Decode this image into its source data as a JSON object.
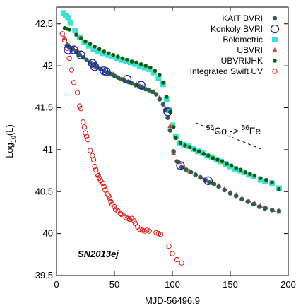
{
  "chart_data": {
    "type": "scatter",
    "xlabel": "MJD-56496.9",
    "ylabel_main": "Log",
    "ylabel_sub": "10",
    "ylabel_tail": "(L)",
    "xlim": [
      0,
      200
    ],
    "ylim": [
      39.5,
      42.7
    ],
    "x_ticks": [
      0,
      50,
      100,
      150,
      200
    ],
    "y_ticks": [
      39.5,
      40,
      40.5,
      41,
      41.5,
      42,
      42.5
    ],
    "y_tick_labels": [
      "39.5",
      "40",
      "40.5",
      "41",
      "41.5",
      "42",
      "42.5"
    ],
    "grid": false,
    "legend_position": "top-right",
    "object_label": "SN2013ej",
    "annotation": {
      "sup1": "56",
      "text1": "Co -> ",
      "sup2": "56",
      "text2": "Fe",
      "line_x": [
        120,
        178
      ],
      "line_y": [
        41.32,
        41.0
      ]
    },
    "series": [
      {
        "name": "KAIT BVRI",
        "marker": "filled-circle",
        "color": "#2f5f4a",
        "points": [
          [
            9,
            42.24
          ],
          [
            11,
            42.22
          ],
          [
            14,
            42.2
          ],
          [
            17,
            42.17
          ],
          [
            20,
            42.13
          ],
          [
            23,
            42.1
          ],
          [
            26,
            42.07
          ],
          [
            29,
            42.04
          ],
          [
            32,
            42.01
          ],
          [
            35,
            41.98
          ],
          [
            38,
            41.96
          ],
          [
            41,
            41.94
          ],
          [
            44,
            41.92
          ],
          [
            47,
            41.9
          ],
          [
            50,
            41.88
          ],
          [
            53,
            41.86
          ],
          [
            56,
            41.84
          ],
          [
            59,
            41.82
          ],
          [
            62,
            41.81
          ],
          [
            65,
            41.79
          ],
          [
            68,
            41.77
          ],
          [
            71,
            41.76
          ],
          [
            74,
            41.74
          ],
          [
            77,
            41.72
          ],
          [
            80,
            41.71
          ],
          [
            83,
            41.69
          ],
          [
            86,
            41.66
          ],
          [
            89,
            41.6
          ],
          [
            92,
            41.54
          ],
          [
            94,
            41.47
          ],
          [
            96,
            41.38
          ],
          [
            98,
            41.23
          ],
          [
            101,
            40.98
          ],
          [
            104,
            40.86
          ],
          [
            108,
            40.79
          ],
          [
            112,
            40.76
          ],
          [
            116,
            40.73
          ],
          [
            120,
            40.7
          ],
          [
            124,
            40.67
          ],
          [
            128,
            40.64
          ],
          [
            132,
            40.61
          ],
          [
            136,
            40.59
          ],
          [
            140,
            40.56
          ],
          [
            145,
            40.52
          ],
          [
            150,
            40.48
          ],
          [
            155,
            40.45
          ],
          [
            160,
            40.41
          ],
          [
            165,
            40.38
          ],
          [
            170,
            40.35
          ],
          [
            175,
            40.32
          ],
          [
            180,
            40.3
          ],
          [
            186,
            40.28
          ],
          [
            192,
            40.27
          ]
        ]
      },
      {
        "name": "Konkoly BVRI",
        "marker": "open-circle",
        "color": "#1a1acc",
        "points": [
          [
            10,
            42.19
          ],
          [
            15,
            42.19
          ],
          [
            21,
            42.13
          ],
          [
            31,
            42.03
          ],
          [
            33,
            41.99
          ],
          [
            41,
            41.94
          ],
          [
            43,
            41.93
          ],
          [
            61,
            41.84
          ],
          [
            73,
            41.77
          ],
          [
            96,
            41.45
          ],
          [
            107,
            40.81
          ],
          [
            131,
            40.63
          ]
        ]
      },
      {
        "name": "Bolometric",
        "marker": "filled-square",
        "color": "#40e0d0",
        "points": [
          [
            6,
            42.63
          ],
          [
            8,
            42.6
          ],
          [
            10,
            42.57
          ],
          [
            12,
            42.51
          ],
          [
            16,
            42.42
          ],
          [
            20,
            42.34
          ],
          [
            24,
            42.28
          ],
          [
            28,
            42.24
          ],
          [
            32,
            42.2
          ],
          [
            36,
            42.17
          ],
          [
            40,
            42.15
          ],
          [
            44,
            42.13
          ],
          [
            48,
            42.11
          ],
          [
            52,
            42.09
          ],
          [
            56,
            42.07
          ],
          [
            60,
            42.06
          ],
          [
            64,
            42.04
          ],
          [
            68,
            42.02
          ],
          [
            72,
            42.0
          ],
          [
            76,
            41.98
          ],
          [
            80,
            41.96
          ],
          [
            84,
            41.92
          ],
          [
            88,
            41.85
          ],
          [
            92,
            41.78
          ],
          [
            95,
            41.6
          ],
          [
            97,
            41.47
          ],
          [
            100,
            41.29
          ],
          [
            103,
            41.16
          ],
          [
            106,
            41.08
          ],
          [
            110,
            41.06
          ],
          [
            114,
            41.04
          ],
          [
            118,
            41.01
          ],
          [
            122,
            40.98
          ],
          [
            126,
            40.96
          ],
          [
            130,
            40.93
          ],
          [
            134,
            40.91
          ],
          [
            138,
            40.88
          ],
          [
            142,
            40.86
          ],
          [
            146,
            40.83
          ],
          [
            150,
            40.8
          ],
          [
            154,
            40.77
          ],
          [
            158,
            40.75
          ],
          [
            162,
            40.73
          ],
          [
            166,
            40.7
          ],
          [
            170,
            40.68
          ],
          [
            176,
            40.64
          ],
          [
            180,
            40.62
          ],
          [
            186,
            40.6
          ],
          [
            192,
            40.54
          ]
        ]
      },
      {
        "name": "UBVRI",
        "marker": "filled-triangle",
        "color": "#c44a4a",
        "points": [
          [
            7,
            42.33
          ],
          [
            9,
            42.26
          ],
          [
            11,
            42.24
          ],
          [
            14,
            42.21
          ],
          [
            19,
            42.16
          ],
          [
            24,
            42.1
          ],
          [
            29,
            42.05
          ],
          [
            34,
            41.99
          ],
          [
            39,
            41.96
          ],
          [
            44,
            41.93
          ],
          [
            49,
            41.9
          ],
          [
            54,
            41.86
          ],
          [
            59,
            41.83
          ],
          [
            64,
            41.8
          ],
          [
            69,
            41.78
          ],
          [
            74,
            41.75
          ],
          [
            79,
            41.72
          ],
          [
            84,
            41.69
          ],
          [
            89,
            41.62
          ],
          [
            94,
            41.49
          ],
          [
            98,
            41.28
          ],
          [
            101,
            40.96
          ],
          [
            106,
            40.85
          ],
          [
            110,
            40.79
          ],
          [
            115,
            40.74
          ],
          [
            120,
            40.71
          ],
          [
            125,
            40.67
          ],
          [
            130,
            40.63
          ],
          [
            135,
            40.6
          ],
          [
            140,
            40.57
          ],
          [
            145,
            40.53
          ],
          [
            150,
            40.49
          ],
          [
            155,
            40.46
          ],
          [
            160,
            40.42
          ],
          [
            166,
            40.39
          ],
          [
            171,
            40.36
          ],
          [
            176,
            40.33
          ],
          [
            181,
            40.31
          ],
          [
            187,
            40.28
          ],
          [
            192,
            40.26
          ]
        ]
      },
      {
        "name": "UBVRIJHK",
        "marker": "filled-circle-small",
        "color": "#0b5c0b",
        "points": [
          [
            7,
            42.45
          ],
          [
            9,
            42.44
          ],
          [
            11,
            42.43
          ],
          [
            17,
            42.37
          ],
          [
            21,
            42.33
          ],
          [
            25,
            42.29
          ],
          [
            29,
            42.26
          ],
          [
            33,
            42.23
          ],
          [
            37,
            42.2
          ],
          [
            41,
            42.17
          ],
          [
            45,
            42.15
          ],
          [
            49,
            42.13
          ],
          [
            53,
            42.11
          ],
          [
            57,
            42.09
          ],
          [
            61,
            42.07
          ],
          [
            65,
            42.05
          ],
          [
            69,
            42.04
          ],
          [
            73,
            42.02
          ],
          [
            77,
            42.0
          ],
          [
            81,
            41.98
          ],
          [
            85,
            41.94
          ],
          [
            89,
            41.89
          ],
          [
            92,
            41.8
          ],
          [
            95,
            41.63
          ],
          [
            98,
            41.45
          ],
          [
            101,
            41.27
          ],
          [
            103,
            41.14
          ],
          [
            107,
            41.08
          ],
          [
            111,
            41.05
          ],
          [
            115,
            41.03
          ],
          [
            119,
            41.0
          ],
          [
            123,
            40.98
          ],
          [
            127,
            40.95
          ],
          [
            131,
            40.93
          ],
          [
            135,
            40.9
          ],
          [
            139,
            40.88
          ],
          [
            143,
            40.86
          ],
          [
            147,
            40.83
          ],
          [
            151,
            40.81
          ],
          [
            155,
            40.78
          ],
          [
            159,
            40.76
          ],
          [
            163,
            40.73
          ],
          [
            167,
            40.71
          ],
          [
            171,
            40.69
          ],
          [
            176,
            40.66
          ],
          [
            181,
            40.64
          ],
          [
            186,
            40.61
          ],
          [
            192,
            40.53
          ]
        ]
      },
      {
        "name": "Integrated Swift UV",
        "marker": "open-circle-small",
        "color": "#dd1111",
        "points": [
          [
            5,
            42.38
          ],
          [
            7,
            42.31
          ],
          [
            9,
            42.21
          ],
          [
            11,
            42.09
          ],
          [
            13,
            41.95
          ],
          [
            15,
            41.8
          ],
          [
            18,
            41.68
          ],
          [
            20,
            41.52
          ],
          [
            21,
            41.49
          ],
          [
            23,
            41.33
          ],
          [
            24,
            41.27
          ],
          [
            25,
            41.2
          ],
          [
            26,
            41.16
          ],
          [
            27,
            41.12
          ],
          [
            29,
            40.99
          ],
          [
            31,
            40.93
          ],
          [
            32,
            40.88
          ],
          [
            33,
            40.8
          ],
          [
            34,
            40.76
          ],
          [
            35,
            40.71
          ],
          [
            36,
            40.69
          ],
          [
            37,
            40.66
          ],
          [
            38,
            40.63
          ],
          [
            40,
            40.6
          ],
          [
            41,
            40.56
          ],
          [
            42,
            40.52
          ],
          [
            44,
            40.47
          ],
          [
            45,
            40.45
          ],
          [
            46,
            40.42
          ],
          [
            47,
            40.38
          ],
          [
            48,
            40.35
          ],
          [
            50,
            40.32
          ],
          [
            51,
            40.29
          ],
          [
            53,
            40.27
          ],
          [
            55,
            40.24
          ],
          [
            56,
            40.23
          ],
          [
            58,
            40.21
          ],
          [
            60,
            40.19
          ],
          [
            62,
            40.18
          ],
          [
            63,
            40.17
          ],
          [
            65,
            40.18
          ],
          [
            67,
            40.15
          ],
          [
            68,
            40.12
          ],
          [
            70,
            40.08
          ],
          [
            72,
            40.05
          ],
          [
            74,
            40.04
          ],
          [
            76,
            40.03
          ],
          [
            78,
            40.04
          ],
          [
            80,
            40.03
          ],
          [
            86,
            40.01
          ],
          [
            88,
            40.0
          ],
          [
            90,
            39.99
          ],
          [
            97,
            39.85
          ],
          [
            100,
            39.76
          ],
          [
            104,
            39.69
          ],
          [
            108,
            39.65
          ]
        ]
      }
    ]
  }
}
